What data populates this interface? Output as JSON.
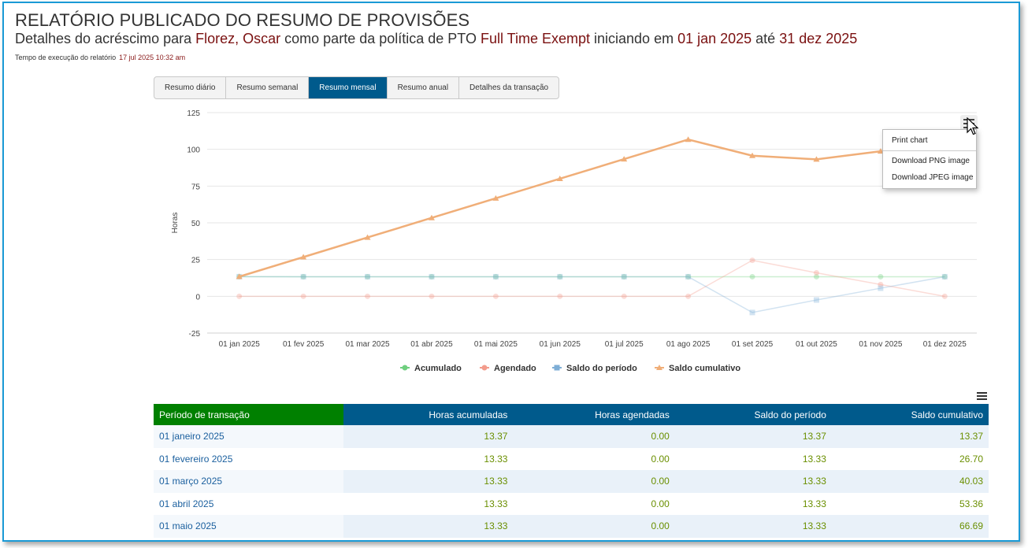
{
  "header": {
    "title": "RELATÓRIO PUBLICADO DO RESUMO DE PROVISÕES",
    "subtitle_prefix": "Detalhes do acréscimo para ",
    "employee_name": "Florez, Oscar",
    "subtitle_mid1": " como parte da política de PTO ",
    "policy": "Full Time Exempt",
    "subtitle_mid2": " iniciando em ",
    "start_date": "01 jan 2025",
    "subtitle_mid3": " até ",
    "end_date": "31 dez 2025",
    "runtime_label": "Tempo de execução do relatório",
    "runtime_value": "17 jul 2025 10:32 am"
  },
  "tabs": [
    {
      "label": "Resumo diário",
      "active": false
    },
    {
      "label": "Resumo semanal",
      "active": false
    },
    {
      "label": "Resumo mensal",
      "active": true
    },
    {
      "label": "Resumo anual",
      "active": false
    },
    {
      "label": "Detalhes da transação",
      "active": false
    }
  ],
  "chart_menu": {
    "icon": "hamburger-menu-icon",
    "items": [
      "Print chart",
      "Download PNG image",
      "Download JPEG image"
    ]
  },
  "chart_data": {
    "type": "line",
    "ylabel": "Horas",
    "ylim": [
      -25,
      125
    ],
    "yticks": [
      125,
      100,
      75,
      50,
      25,
      0,
      -25
    ],
    "categories": [
      "01 jan 2025",
      "01 fev 2025",
      "01 mar 2025",
      "01 abr 2025",
      "01 mai 2025",
      "01 jun 2025",
      "01 jul 2025",
      "01 ago 2025",
      "01 set 2025",
      "01 out 2025",
      "01 nov 2025",
      "01 dez 2025"
    ],
    "legend_position": "bottom-center",
    "grid": true,
    "series": [
      {
        "name": "Acumulado",
        "color": "#6fcf7f",
        "marker": "circle",
        "faded": true,
        "values": [
          13.37,
          13.33,
          13.33,
          13.33,
          13.33,
          13.33,
          13.33,
          13.33,
          13.33,
          13.33,
          13.33,
          13.33
        ]
      },
      {
        "name": "Agendado",
        "color": "#f39c8c",
        "marker": "circle",
        "faded": true,
        "values": [
          0,
          0,
          0,
          0,
          0,
          0,
          0,
          0,
          24.5,
          16,
          8,
          0
        ]
      },
      {
        "name": "Saldo do período",
        "color": "#7eaed6",
        "marker": "square",
        "faded": true,
        "values": [
          13.37,
          13.33,
          13.33,
          13.33,
          13.33,
          13.33,
          13.33,
          13.33,
          -11,
          -2.5,
          5.5,
          13.33
        ]
      },
      {
        "name": "Saldo cumulativo",
        "color": "#f0ae78",
        "marker": "triangle",
        "faded": false,
        "values": [
          13.37,
          26.7,
          40.03,
          53.36,
          66.69,
          80.02,
          93.35,
          106.68,
          95.68,
          93.18,
          98.7,
          98.7
        ]
      }
    ]
  },
  "table": {
    "headers": [
      "Período de transação",
      "Horas acumuladas",
      "Horas agendadas",
      "Saldo do período",
      "Saldo cumulativo"
    ],
    "rows": [
      [
        "01 janeiro 2025",
        "13.37",
        "0.00",
        "13.37",
        "13.37"
      ],
      [
        "01 fevereiro 2025",
        "13.33",
        "0.00",
        "13.33",
        "26.70"
      ],
      [
        "01 março 2025",
        "13.33",
        "0.00",
        "13.33",
        "40.03"
      ],
      [
        "01 abril 2025",
        "13.33",
        "0.00",
        "13.33",
        "53.36"
      ],
      [
        "01 maio 2025",
        "13.33",
        "0.00",
        "13.33",
        "66.69"
      ]
    ]
  }
}
